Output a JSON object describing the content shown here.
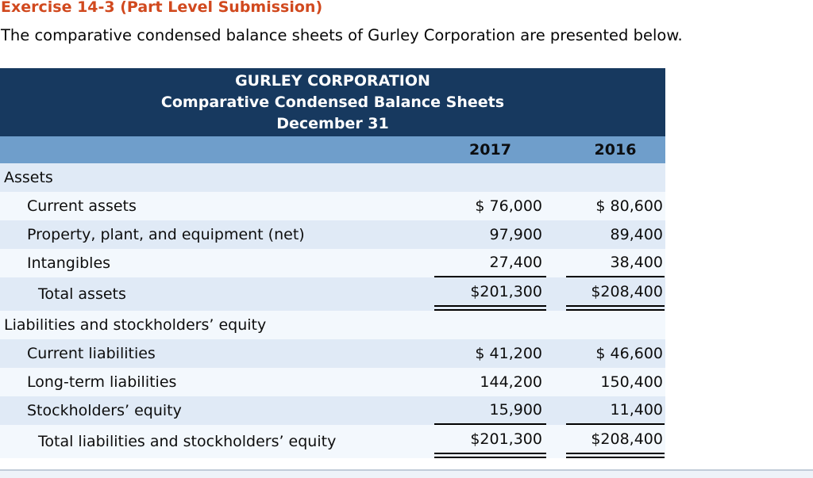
{
  "page": {
    "title": "Exercise 14-3 (Part Level Submission)",
    "intro": "The comparative condensed balance sheets of Gurley Corporation are presented below."
  },
  "balance_sheet": {
    "header_lines": [
      "GURLEY CORPORATION",
      "Comparative Condensed Balance Sheets",
      "December 31"
    ],
    "col_headers": [
      "2017",
      "2016"
    ],
    "rows": [
      {
        "label": "Assets",
        "indent": 0,
        "y2017": "",
        "y2016": "",
        "underline": "none"
      },
      {
        "label": "Current assets",
        "indent": 1,
        "y2017": "$ 76,000",
        "y2016": "$ 80,600",
        "underline": "none"
      },
      {
        "label": "Property, plant, and equipment (net)",
        "indent": 1,
        "y2017": "97,900",
        "y2016": "89,400",
        "underline": "none"
      },
      {
        "label": "Intangibles",
        "indent": 1,
        "y2017": "27,400",
        "y2016": "38,400",
        "underline": "single"
      },
      {
        "label": "Total assets",
        "indent": 2,
        "y2017": "$201,300",
        "y2016": "$208,400",
        "underline": "double"
      },
      {
        "label": "Liabilities and stockholders’ equity",
        "indent": 0,
        "y2017": "",
        "y2016": "",
        "underline": "none"
      },
      {
        "label": "Current liabilities",
        "indent": 1,
        "y2017": "$ 41,200",
        "y2016": "$ 46,600",
        "underline": "none"
      },
      {
        "label": "Long-term liabilities",
        "indent": 1,
        "y2017": "144,200",
        "y2016": "150,400",
        "underline": "none"
      },
      {
        "label": "Stockholders’ equity",
        "indent": 1,
        "y2017": "15,900",
        "y2016": "11,400",
        "underline": "single"
      },
      {
        "label": "Total liabilities and stockholders’ equity",
        "indent": 2,
        "y2017": "$201,300",
        "y2016": "$208,400",
        "underline": "double"
      }
    ]
  },
  "colors": {
    "title_accent": "#d1491e",
    "table_header_bg": "#17395f",
    "column_band_bg": "#6f9ecb",
    "row_stripe_blue": "#e0eaf6",
    "row_stripe_light": "#f3f8fd",
    "underline": "#000000"
  }
}
